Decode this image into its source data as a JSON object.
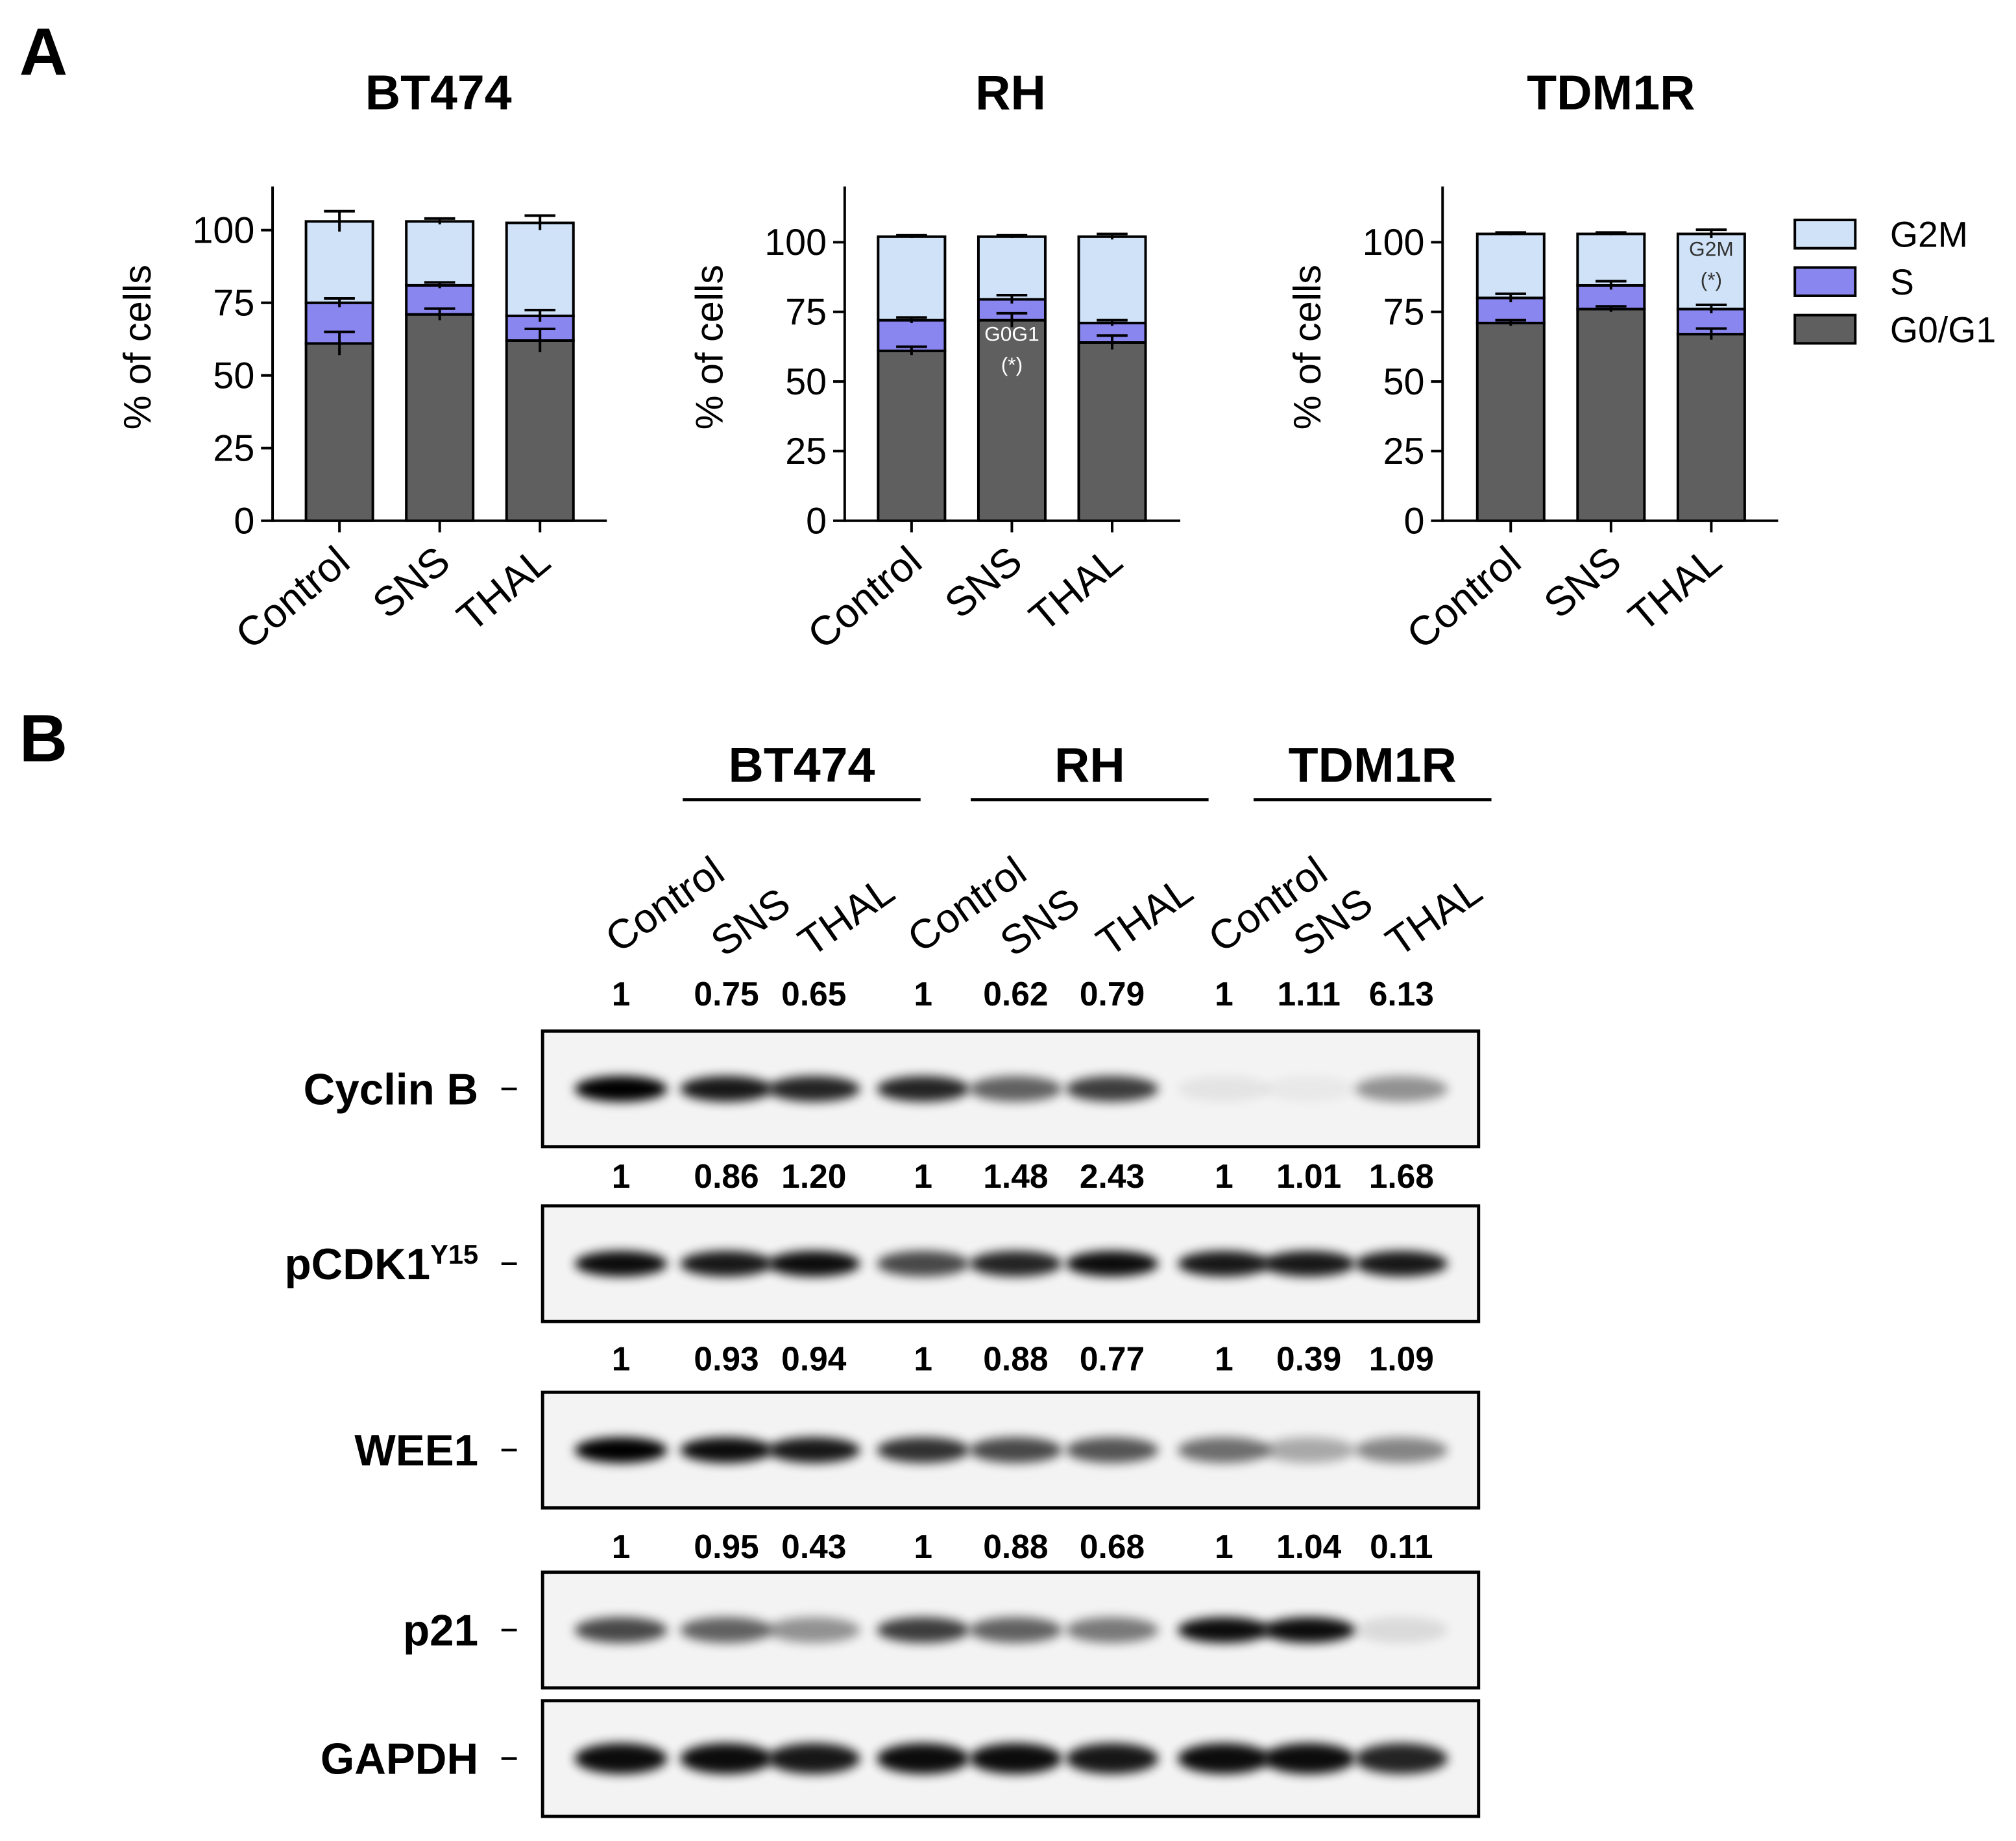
{
  "panel_labels": [
    "A",
    "B"
  ],
  "chart_data": [
    {
      "type": "bar",
      "stacked": true,
      "title": "BT474",
      "y_label": "% of cells",
      "categories": [
        "Control",
        "SNS",
        "THAL"
      ],
      "series": [
        {
          "name": "G0/G1",
          "color": "#5f5f5f",
          "values": [
            61,
            71,
            62
          ],
          "errors": [
            4,
            2,
            4
          ]
        },
        {
          "name": "S",
          "color": "#8a86f0",
          "values": [
            14,
            10,
            8.5
          ],
          "errors": [
            1.5,
            1,
            2
          ]
        },
        {
          "name": "G2M",
          "color": "#cfe2f7",
          "values": [
            28,
            22,
            32
          ],
          "errors": [
            3.5,
            1,
            2.5
          ]
        }
      ],
      "ylim": [
        0,
        115
      ],
      "yticks": [
        0,
        25,
        50,
        75,
        100
      ]
    },
    {
      "type": "bar",
      "stacked": true,
      "title": "RH",
      "y_label": "% of cells",
      "categories": [
        "Control",
        "SNS",
        "THAL"
      ],
      "series": [
        {
          "name": "G0/G1",
          "color": "#5f5f5f",
          "values": [
            61,
            72,
            64
          ],
          "errors": [
            1.5,
            2.5,
            2.5
          ]
        },
        {
          "name": "S",
          "color": "#8a86f0",
          "values": [
            11,
            7.5,
            7
          ],
          "errors": [
            1,
            1.5,
            1
          ]
        },
        {
          "name": "G2M",
          "color": "#cfe2f7",
          "values": [
            30,
            22.5,
            31
          ],
          "errors": [
            0.5,
            0.5,
            1
          ]
        }
      ],
      "ylim": [
        0,
        120
      ],
      "yticks": [
        0,
        25,
        50,
        75,
        100
      ],
      "annotations": [
        {
          "label": "G0G1",
          "note": "(*)"
        }
      ]
    },
    {
      "type": "bar",
      "stacked": true,
      "title": "TDM1R",
      "y_label": "% of cells",
      "categories": [
        "Control",
        "SNS",
        "THAL"
      ],
      "series": [
        {
          "name": "G0/G1",
          "color": "#5f5f5f",
          "values": [
            71,
            76,
            67
          ],
          "errors": [
            1,
            1,
            2
          ]
        },
        {
          "name": "S",
          "color": "#8a86f0",
          "values": [
            9,
            8.5,
            9
          ],
          "errors": [
            1.5,
            1.5,
            1.5
          ]
        },
        {
          "name": "G2M",
          "color": "#cfe2f7",
          "values": [
            23,
            18.5,
            27
          ],
          "errors": [
            0.5,
            0.5,
            1.5
          ]
        }
      ],
      "ylim": [
        0,
        120
      ],
      "yticks": [
        0,
        25,
        50,
        75,
        100
      ],
      "annotations": [
        {
          "label": "G2M",
          "note": "(*)"
        }
      ]
    }
  ],
  "blot": {
    "groups": [
      {
        "name": "BT474",
        "lanes": [
          "Control",
          "SNS",
          "THAL"
        ]
      },
      {
        "name": "RH",
        "lanes": [
          "Control",
          "SNS",
          "THAL"
        ]
      },
      {
        "name": "TDM1R",
        "lanes": [
          "Control",
          "SNS",
          "THAL"
        ]
      }
    ],
    "rows": [
      {
        "label": "Cyclin B",
        "quantification": [
          "1",
          "0.75",
          "0.65",
          "1",
          "0.62",
          "0.79",
          "1",
          "1.11",
          "6.13"
        ]
      },
      {
        "label": "pCDK1",
        "superscript": "Y15",
        "quantification": [
          "1",
          "0.86",
          "1.20",
          "1",
          "1.48",
          "2.43",
          "1",
          "1.01",
          "1.68"
        ]
      },
      {
        "label": "WEE1",
        "quantification": [
          "1",
          "0.93",
          "0.94",
          "1",
          "0.88",
          "0.77",
          "1",
          "0.39",
          "1.09"
        ]
      },
      {
        "label": "p21",
        "quantification": [
          "1",
          "0.95",
          "0.43",
          "1",
          "0.88",
          "0.68",
          "1",
          "1.04",
          "0.11"
        ]
      },
      {
        "label": "GAPDH"
      }
    ]
  }
}
